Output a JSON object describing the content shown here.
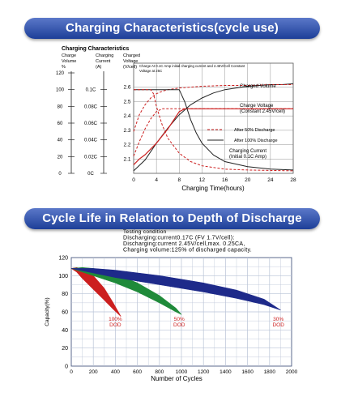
{
  "banners": {
    "top": "Charging Characteristics(cycle use)",
    "bottom": "Cycle Life in Relation to Depth of Discharge"
  },
  "colors": {
    "banner_top": "#5b78c9",
    "banner_bottom": "#1d3f98",
    "red_line": "#cc1f1f",
    "dark_line": "#222222",
    "dod100": "#cc1f1f",
    "dod50": "#1f8a3a",
    "dod30": "#1e2a8a",
    "grid": "#b9c3d6"
  },
  "chart_data": [
    {
      "type": "line",
      "title": "Charging Characteristics",
      "xlabel": "Charging Time(hours)",
      "xlim": [
        0,
        28
      ],
      "x_ticks": [
        "0",
        "4",
        "8",
        "12",
        "16",
        "20",
        "24",
        "28"
      ],
      "header": {
        "col1": [
          "Charge",
          "Volume",
          "%"
        ],
        "col2": [
          "Charging",
          "Current",
          "(A)"
        ],
        "col3": [
          "Charged",
          "Voltage",
          "(V/cell)"
        ]
      },
      "axes": [
        {
          "name": "Charge Volume (%)",
          "ticks": [
            "120",
            "100",
            "80",
            "60",
            "40",
            "20",
            "0"
          ]
        },
        {
          "name": "Charging Current (A)",
          "ticks": [
            "0.1C",
            "0.08C",
            "0.06C",
            "0.04C",
            "0.02C",
            "0C"
          ]
        },
        {
          "name": "Charged Voltage (V/cell)",
          "ticks": [
            "2.6",
            "2.5",
            "2.4",
            "2.3",
            "2.2",
            "2.1"
          ]
        }
      ],
      "ylim_voltage": [
        2.0,
        2.7
      ],
      "annotations": {
        "condition": [
          "Charge At 0.1C Amp initial charging current and 2.45V/Cell Constant",
          "Voltage at 25C"
        ],
        "charged_volume": "Charged Volume",
        "charge_voltage": [
          "Charge Voltage",
          "(Constant 2.45V/cell)"
        ],
        "after50": "After 50% Discharge",
        "after100": "After 100% Discharge",
        "charging_current": [
          "Charging Current",
          "(Initial 0.1C Amp)"
        ]
      },
      "series": [
        {
          "name": "Charged Volume",
          "style": "solid",
          "x": [
            0,
            2,
            4,
            6,
            8,
            10,
            12,
            14,
            16,
            18,
            20,
            22,
            24,
            26,
            28
          ],
          "y_percent": [
            3,
            16,
            36,
            54,
            70,
            82,
            90,
            96,
            100,
            102,
            104,
            105,
            106,
            106,
            107
          ]
        },
        {
          "name": "Charged Volume (After 50% Discharge)",
          "style": "dashed",
          "x": [
            0,
            1,
            2,
            3,
            4,
            5,
            6,
            8,
            10,
            12,
            16,
            20,
            24,
            28
          ],
          "y_percent": [
            50,
            70,
            82,
            90,
            95,
            98,
            100,
            102,
            103,
            104,
            105,
            105,
            106,
            106
          ]
        },
        {
          "name": "Charge Voltage",
          "style": "solid",
          "x": [
            0,
            1,
            2,
            3,
            4,
            5,
            6,
            7,
            8,
            9,
            12,
            16,
            20,
            24,
            28
          ],
          "y_volts": [
            2.06,
            2.1,
            2.13,
            2.17,
            2.21,
            2.26,
            2.31,
            2.37,
            2.43,
            2.45,
            2.45,
            2.45,
            2.45,
            2.45,
            2.45
          ]
        },
        {
          "name": "Charge Voltage (After 50% Discharge)",
          "style": "dashed",
          "x": [
            0,
            1,
            2,
            3,
            4,
            5,
            6,
            8,
            12,
            16,
            20,
            24,
            28
          ],
          "y_volts": [
            2.12,
            2.22,
            2.31,
            2.38,
            2.43,
            2.45,
            2.45,
            2.45,
            2.45,
            2.45,
            2.45,
            2.45,
            2.45
          ]
        },
        {
          "name": "Charging Current (After 100% Discharge)",
          "style": "solid",
          "x": [
            0,
            2,
            4,
            6,
            8,
            9,
            10,
            11,
            12,
            14,
            16,
            20,
            24,
            28
          ],
          "y_current_c": [
            0.1,
            0.1,
            0.1,
            0.1,
            0.1,
            0.085,
            0.064,
            0.048,
            0.036,
            0.022,
            0.014,
            0.008,
            0.005,
            0.004
          ]
        },
        {
          "name": "Charging Current (After 50% Discharge)",
          "style": "dashed",
          "x": [
            0,
            1,
            2,
            3,
            3.5,
            4,
            5,
            6,
            8,
            10,
            12,
            16,
            20,
            28
          ],
          "y_current_c": [
            0.1,
            0.1,
            0.1,
            0.1,
            0.095,
            0.08,
            0.058,
            0.042,
            0.024,
            0.014,
            0.009,
            0.005,
            0.004,
            0.003
          ]
        }
      ]
    },
    {
      "type": "area",
      "xlabel": "Number of Cycles",
      "ylabel": "Capacity(%)",
      "xlim": [
        0,
        2000
      ],
      "ylim": [
        0,
        120
      ],
      "x_ticks": [
        "0",
        "200",
        "400",
        "600",
        "800",
        "1000",
        "1200",
        "1400",
        "1600",
        "1800",
        "2000"
      ],
      "y_ticks": [
        "0",
        "20",
        "40",
        "60",
        "80",
        "100",
        "120"
      ],
      "testing_condition": [
        "Testing condition",
        "Discharging:current0.17C (FV 1.7V/cell):",
        "Discharging:current 2.45V/cell,max. 0.25CA,",
        "Charging volume:125% of discharged capacity."
      ],
      "series": [
        {
          "name": "100% DOD",
          "label": [
            "100%",
            "DOD"
          ],
          "upper": {
            "x": [
              0,
              50,
              100,
              200,
              300,
              380,
              450
            ],
            "y": [
              108,
              109,
              107,
              100,
              86,
              70,
              55
            ]
          },
          "lower": {
            "x": [
              0,
              50,
              100,
              200,
              300,
              380,
              450
            ],
            "y": [
              108,
              104,
              97,
              85,
              73,
              63,
              55
            ]
          }
        },
        {
          "name": "50% DOD",
          "label": [
            "50%",
            "DOD"
          ],
          "upper": {
            "x": [
              0,
              100,
              200,
              400,
              600,
              800,
              950,
              1000
            ],
            "y": [
              108,
              109,
              108,
              102,
              92,
              78,
              64,
              57
            ]
          },
          "lower": {
            "x": [
              0,
              100,
              200,
              400,
              600,
              800,
              950,
              1000
            ],
            "y": [
              108,
              104,
              100,
              92,
              82,
              70,
              60,
              57
            ]
          }
        },
        {
          "name": "30% DOD",
          "label": [
            "30%",
            "DOD"
          ],
          "upper": {
            "x": [
              0,
              200,
              400,
              800,
              1200,
              1500,
              1750,
              1900
            ],
            "y": [
              108,
              108,
              106,
              100,
              92,
              84,
              74,
              62
            ]
          },
          "lower": {
            "x": [
              0,
              200,
              400,
              800,
              1200,
              1500,
              1750,
              1900
            ],
            "y": [
              108,
              103,
              98,
              90,
              82,
              75,
              68,
              62
            ]
          }
        }
      ]
    }
  ]
}
